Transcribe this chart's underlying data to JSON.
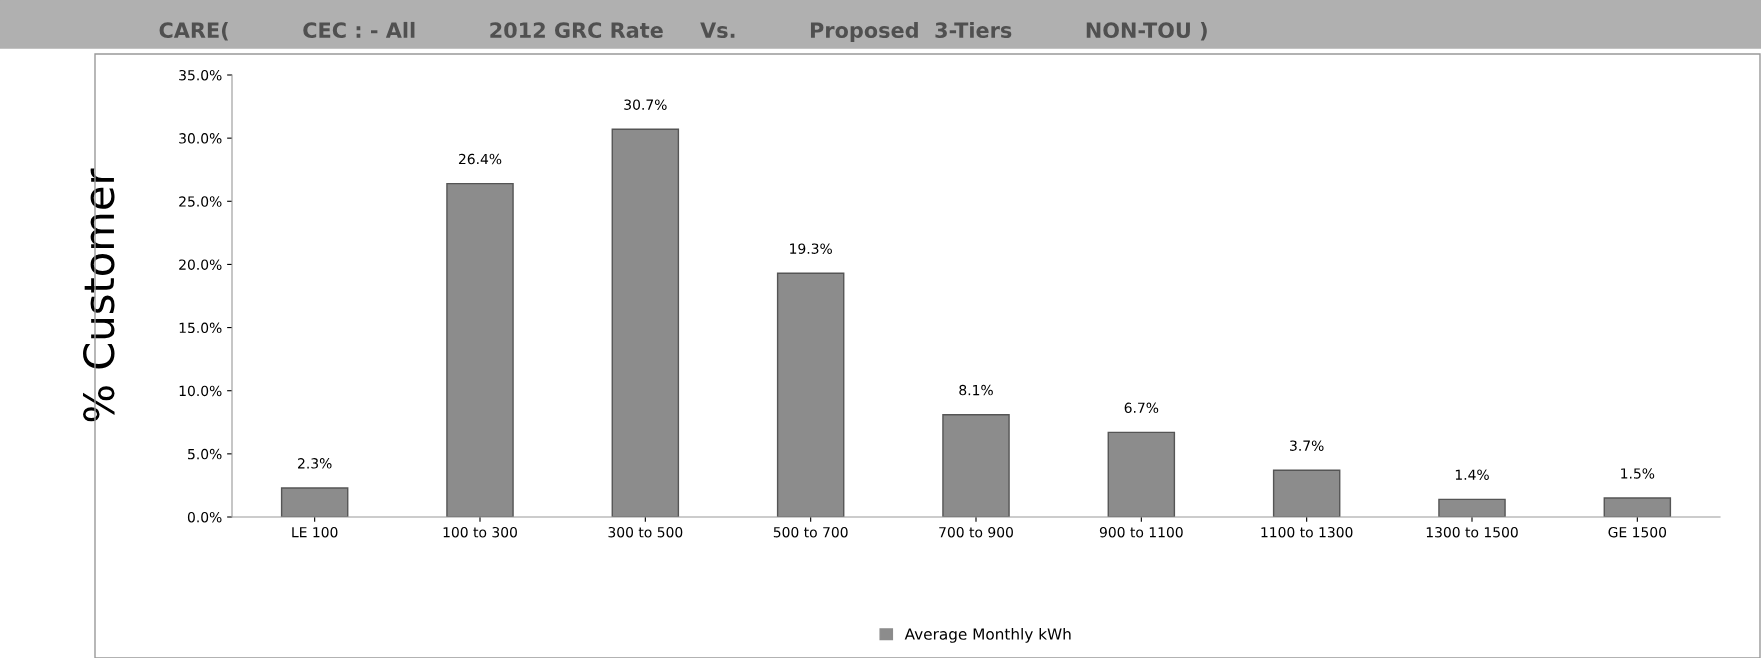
{
  "chart_data": {
    "type": "bar",
    "title": "CARE(          CEC : - All          2012 GRC Rate     Vs.          Proposed  3-Tiers          NON-TOU )",
    "ylabel": "% Customer",
    "categories": [
      "LE 100",
      "100 to 300",
      "300 to 500",
      "500 to 700",
      "700 to 900",
      "900 to 1100",
      "1100 to 1300",
      "1300 to 1500",
      "GE 1500"
    ],
    "series": [
      {
        "name": "Average Monthly kWh",
        "color": "#8c8c8c",
        "values": [
          2.3,
          26.4,
          30.7,
          19.3,
          8.1,
          6.7,
          3.7,
          1.4,
          1.5
        ],
        "value_labels": [
          "2.3%",
          "26.4%",
          "30.7%",
          "19.3%",
          "8.1%",
          "6.7%",
          "3.7%",
          "1.4%",
          "1.5%"
        ]
      }
    ],
    "ylim": [
      0,
      35
    ],
    "yticks": [
      {
        "value": 0,
        "label": "0.0%"
      },
      {
        "value": 5,
        "label": "5.0%"
      },
      {
        "value": 10,
        "label": "10.0%"
      },
      {
        "value": 15,
        "label": "15.0%"
      },
      {
        "value": 20,
        "label": "20.0%"
      },
      {
        "value": 25,
        "label": "25.0%"
      },
      {
        "value": 30,
        "label": "30.0%"
      },
      {
        "value": 35,
        "label": "35.0%"
      }
    ],
    "grid": false,
    "legend": "bottom"
  }
}
